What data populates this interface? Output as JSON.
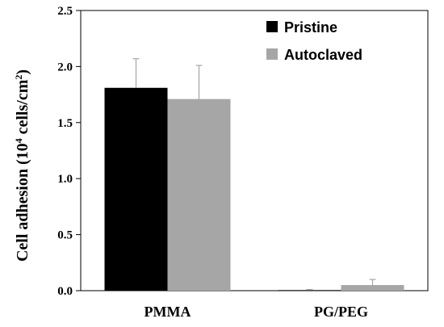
{
  "chart_data": {
    "type": "bar",
    "categories": [
      "PMMA",
      "PG/PEG"
    ],
    "series": [
      {
        "name": "Pristine",
        "values": [
          1.81,
          0.005
        ],
        "errors": [
          0.26,
          0.005
        ],
        "color": "#000000"
      },
      {
        "name": "Autoclaved",
        "values": [
          1.71,
          0.05
        ],
        "errors": [
          0.3,
          0.05
        ],
        "color": "#a6a6a6"
      }
    ],
    "ylabel_main": "Cell adhesion (10",
    "ylabel_sup1": "4",
    "ylabel_mid": " cells/cm",
    "ylabel_sup2": "2",
    "ylabel_end": ")",
    "ylim": [
      0,
      2.5
    ],
    "yticks": [
      "0.0",
      "0.5",
      "1.0",
      "1.5",
      "2.0",
      "2.5"
    ],
    "grid": false,
    "legend_position": "top-right",
    "error_bar_color": "#a6a6a6"
  }
}
